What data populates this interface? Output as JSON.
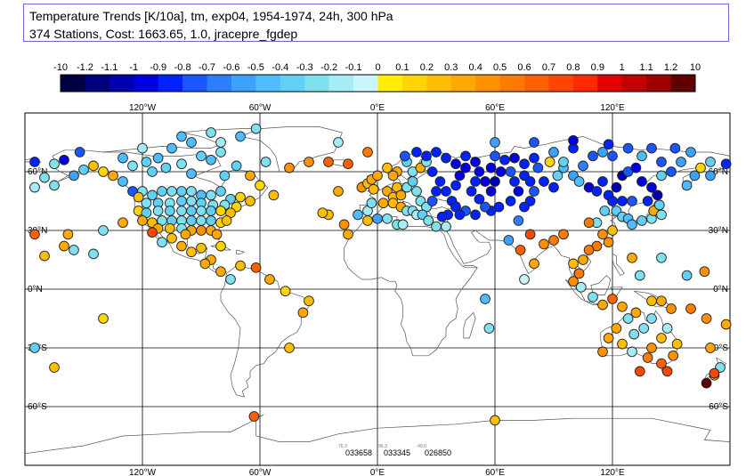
{
  "title": {
    "line1": "Temperature Trends [K/10a], tm, exp04, 1954-1974, 24h, 300 hPa",
    "line2": "374 Stations, Cost: 1663.65, 1.0, jracepre_fgdep"
  },
  "colorbar": {
    "labels": [
      "-10",
      "-1.2",
      "-1.1",
      "-1",
      "-0.9",
      "-0.8",
      "-0.7",
      "-0.6",
      "-0.5",
      "-0.4",
      "-0.3",
      "-0.2",
      "-0.1",
      "0",
      "0.1",
      "0.2",
      "0.3",
      "0.4",
      "0.5",
      "0.6",
      "0.7",
      "0.8",
      "0.9",
      "1",
      "1.1",
      "1.2",
      "10"
    ],
    "colors": [
      "#000040",
      "#00007a",
      "#0000b0",
      "#0000e0",
      "#0022ff",
      "#1a55ff",
      "#2d7dff",
      "#3ca2ff",
      "#4fbcff",
      "#62d0f5",
      "#7fe0f0",
      "#a6ecf5",
      "#caf6fb",
      "#ffee00",
      "#ffd500",
      "#ffbf00",
      "#ffa800",
      "#ff9000",
      "#ff7a00",
      "#ff6000",
      "#ff4500",
      "#ff2a00",
      "#e40000",
      "#c40000",
      "#9e0000",
      "#600000"
    ]
  },
  "map": {
    "lon_labels": [
      "120°W",
      "60°W",
      "0°E",
      "60°E",
      "120°E"
    ],
    "lat_labels": [
      "60°N",
      "30°N",
      "0°N",
      "30°S",
      "60°S"
    ],
    "station_ids": [
      "033658",
      "033345",
      "026850"
    ],
    "station_id_values": [
      "76.3",
      "86.3",
      "49.0"
    ]
  },
  "stations": [
    [
      -175,
      65,
      -0.9
    ],
    [
      -165,
      64,
      -0.3
    ],
    [
      -160,
      66,
      -1.0
    ],
    [
      -155,
      58,
      -0.6
    ],
    [
      -152,
      70,
      -0.8
    ],
    [
      -150,
      61,
      -0.4
    ],
    [
      -145,
      63,
      0.2
    ],
    [
      -140,
      60,
      0.1
    ],
    [
      -135,
      58,
      0.3
    ],
    [
      -130,
      67,
      -0.5
    ],
    [
      -125,
      63,
      -0.3
    ],
    [
      -118,
      65,
      -0.4
    ],
    [
      -115,
      60,
      -0.4
    ],
    [
      -112,
      67,
      -0.5
    ],
    [
      -108,
      62,
      -0.4
    ],
    [
      -100,
      64,
      -0.3
    ],
    [
      -95,
      59,
      -0.5
    ],
    [
      -90,
      68,
      -0.4
    ],
    [
      -85,
      66,
      -0.5
    ],
    [
      -80,
      70,
      -0.3
    ],
    [
      -78,
      58,
      -0.4
    ],
    [
      -72,
      63,
      -0.4
    ],
    [
      -65,
      58,
      0.3
    ],
    [
      -60,
      53,
      0.1
    ],
    [
      -53,
      48,
      0.2
    ],
    [
      -57,
      65,
      -0.3
    ],
    [
      -120,
      72,
      -0.2
    ],
    [
      -105,
      72,
      -0.5
    ],
    [
      -95,
      75,
      -0.5
    ],
    [
      -80,
      75,
      -0.2
    ],
    [
      -70,
      78,
      -0.5
    ],
    [
      -45,
      62,
      0.4
    ],
    [
      -35,
      65,
      0.4
    ],
    [
      -25,
      65,
      0.6
    ],
    [
      -20,
      75,
      -0.2
    ],
    [
      -15,
      64,
      0.6
    ],
    [
      -5,
      70,
      0.5
    ],
    [
      -62,
      82,
      -0.3
    ],
    [
      -85,
      80,
      -0.3
    ],
    [
      -100,
      78,
      -0.5
    ],
    [
      -170,
      57,
      -0.3
    ],
    [
      -165,
      53,
      -0.3
    ],
    [
      -175,
      52,
      -0.2
    ],
    [
      -130,
      55,
      -0.5
    ],
    [
      -125,
      50,
      -0.8
    ],
    [
      -120,
      50,
      -0.3
    ],
    [
      -115,
      48,
      -0.4
    ],
    [
      -110,
      50,
      -0.4
    ],
    [
      -105,
      50,
      -0.3
    ],
    [
      -100,
      50,
      -0.4
    ],
    [
      -95,
      50,
      -0.3
    ],
    [
      -90,
      48,
      -0.5
    ],
    [
      -85,
      48,
      -0.3
    ],
    [
      -80,
      50,
      -0.4
    ],
    [
      -75,
      46,
      -0.4
    ],
    [
      -70,
      47,
      0.1
    ],
    [
      -65,
      45,
      0.2
    ],
    [
      -122,
      47,
      0.2
    ],
    [
      -118,
      44,
      -0.3
    ],
    [
      -112,
      44,
      -0.4
    ],
    [
      -106,
      44,
      -0.3
    ],
    [
      -100,
      45,
      -0.4
    ],
    [
      -95,
      45,
      -0.3
    ],
    [
      -90,
      44,
      -0.4
    ],
    [
      -84,
      43,
      -0.3
    ],
    [
      -78,
      43,
      -0.3
    ],
    [
      -72,
      42,
      0.1
    ],
    [
      -122,
      40,
      0.1
    ],
    [
      -118,
      39,
      -0.4
    ],
    [
      -112,
      40,
      -0.3
    ],
    [
      -106,
      40,
      -0.4
    ],
    [
      -100,
      40,
      -0.3
    ],
    [
      -95,
      40,
      -0.4
    ],
    [
      -90,
      40,
      -0.3
    ],
    [
      -85,
      40,
      -0.4
    ],
    [
      -80,
      40,
      0.1
    ],
    [
      -75,
      39,
      0.2
    ],
    [
      -120,
      35,
      0.3
    ],
    [
      -115,
      34,
      0.2
    ],
    [
      -110,
      35,
      -0.3
    ],
    [
      -105,
      35,
      -0.4
    ],
    [
      -100,
      35,
      -0.3
    ],
    [
      -95,
      35,
      -0.4
    ],
    [
      -90,
      35,
      -0.3
    ],
    [
      -85,
      35,
      -0.4
    ],
    [
      -80,
      34,
      0.1
    ],
    [
      -77,
      35,
      0.2
    ],
    [
      -112,
      31,
      0.3
    ],
    [
      -106,
      31,
      0.2
    ],
    [
      -100,
      31,
      -0.3
    ],
    [
      -95,
      30,
      0.3
    ],
    [
      -90,
      30,
      0.4
    ],
    [
      -85,
      30,
      0.3
    ],
    [
      -82,
      28,
      0.3
    ],
    [
      -98,
      28,
      0.3
    ],
    [
      -105,
      26,
      0.2
    ],
    [
      -110,
      24,
      -0.3
    ],
    [
      -100,
      22,
      0.3
    ],
    [
      -95,
      19,
      0.2
    ],
    [
      -90,
      21,
      0.2
    ],
    [
      -85,
      15,
      0.3
    ],
    [
      -80,
      22,
      0.1
    ],
    [
      -115,
      29,
      0.7
    ],
    [
      -130,
      34,
      0.3
    ],
    [
      -140,
      30,
      -0.3
    ],
    [
      -155,
      20,
      -0.3
    ],
    [
      -160,
      22,
      0.3
    ],
    [
      -175,
      28,
      0.6
    ],
    [
      -170,
      17,
      0.2
    ],
    [
      -158,
      28,
      0.3
    ],
    [
      -145,
      18,
      -0.3
    ],
    [
      -88,
      13,
      0.3
    ],
    [
      -80,
      9,
      0.3
    ],
    [
      -75,
      5,
      -0.3
    ],
    [
      -70,
      12,
      0.2
    ],
    [
      -62,
      11,
      0.6
    ],
    [
      -55,
      5,
      0.3
    ],
    [
      -47,
      -1,
      0.1
    ],
    [
      -35,
      -6,
      0.2
    ],
    [
      -38,
      -12,
      0.3
    ],
    [
      -175,
      -30,
      -0.4
    ],
    [
      -20,
      50,
      0.3
    ],
    [
      -25,
      38,
      0.2
    ],
    [
      -28,
      39,
      0.2
    ],
    [
      -17,
      33,
      0.4
    ],
    [
      -15,
      28,
      0.3
    ],
    [
      -10,
      38,
      -0.5
    ],
    [
      -5,
      40,
      -0.2
    ],
    [
      -3,
      44,
      -0.3
    ],
    [
      -8,
      52,
      0.4
    ],
    [
      -5,
      54,
      0.2
    ],
    [
      -3,
      56,
      0.3
    ],
    [
      -2,
      51,
      0.2
    ],
    [
      0,
      58,
      0.3
    ],
    [
      5,
      50,
      0.3
    ],
    [
      8,
      47,
      0.2
    ],
    [
      10,
      52,
      0.2
    ],
    [
      12,
      48,
      0.3
    ],
    [
      15,
      52,
      -0.3
    ],
    [
      18,
      55,
      -0.4
    ],
    [
      20,
      50,
      -0.3
    ],
    [
      22,
      45,
      -0.3
    ],
    [
      25,
      42,
      -0.3
    ],
    [
      28,
      45,
      -0.8
    ],
    [
      30,
      50,
      -0.9
    ],
    [
      3,
      44,
      0.3
    ],
    [
      8,
      44,
      0.2
    ],
    [
      12,
      42,
      0.3
    ],
    [
      15,
      40,
      -0.3
    ],
    [
      18,
      40,
      -0.3
    ],
    [
      20,
      38,
      -0.2
    ],
    [
      23,
      38,
      -0.4
    ],
    [
      26,
      35,
      -0.3
    ],
    [
      30,
      32,
      -0.3
    ],
    [
      35,
      32,
      -0.2
    ],
    [
      0,
      36,
      -0.6
    ],
    [
      5,
      36,
      -0.3
    ],
    [
      10,
      33,
      -0.3
    ],
    [
      13,
      33,
      -0.2
    ],
    [
      -5,
      35,
      0.2
    ],
    [
      18,
      60,
      -0.3
    ],
    [
      22,
      62,
      0.3
    ],
    [
      25,
      65,
      -0.3
    ],
    [
      15,
      65,
      -0.4
    ],
    [
      10,
      60,
      0.3
    ],
    [
      5,
      62,
      0.2
    ],
    [
      8,
      58,
      0.3
    ],
    [
      14,
      68,
      -0.8
    ],
    [
      20,
      70,
      -0.9
    ],
    [
      25,
      68,
      -0.9
    ],
    [
      30,
      70,
      -0.9
    ],
    [
      35,
      67,
      -0.9
    ],
    [
      28,
      60,
      -0.9
    ],
    [
      32,
      55,
      -0.9
    ],
    [
      35,
      50,
      -0.9
    ],
    [
      38,
      45,
      -0.9
    ],
    [
      40,
      42,
      -0.9
    ],
    [
      45,
      40,
      -0.8
    ],
    [
      42,
      38,
      -0.9
    ],
    [
      36,
      38,
      -0.9
    ],
    [
      33,
      37,
      -0.9
    ],
    [
      40,
      53,
      -0.9
    ],
    [
      42,
      58,
      -1.0
    ],
    [
      45,
      62,
      -1.0
    ],
    [
      45,
      68,
      -0.9
    ],
    [
      40,
      64,
      -1.0
    ],
    [
      50,
      65,
      -1.0
    ],
    [
      52,
      60,
      -1.0
    ],
    [
      50,
      55,
      -0.9
    ],
    [
      55,
      55,
      -1.0
    ],
    [
      48,
      50,
      -0.9
    ],
    [
      52,
      46,
      -0.9
    ],
    [
      58,
      50,
      -1.0
    ],
    [
      60,
      55,
      -1.1
    ],
    [
      63,
      60,
      -1.0
    ],
    [
      65,
      66,
      -0.9
    ],
    [
      58,
      62,
      -1.0
    ],
    [
      68,
      60,
      -0.8
    ],
    [
      70,
      55,
      -0.9
    ],
    [
      72,
      50,
      -1.0
    ],
    [
      68,
      45,
      -0.9
    ],
    [
      62,
      42,
      -0.9
    ],
    [
      58,
      40,
      -0.9
    ],
    [
      55,
      42,
      -0.8
    ],
    [
      50,
      38,
      -0.9
    ],
    [
      75,
      42,
      -0.9
    ],
    [
      78,
      45,
      -0.9
    ],
    [
      80,
      50,
      -0.8
    ],
    [
      85,
      55,
      -0.9
    ],
    [
      90,
      52,
      -0.9
    ],
    [
      75,
      58,
      -0.9
    ],
    [
      82,
      62,
      -0.8
    ],
    [
      88,
      65,
      0.1
    ],
    [
      95,
      62,
      -0.5
    ],
    [
      100,
      58,
      -0.6
    ],
    [
      103,
      55,
      -0.5
    ],
    [
      108,
      52,
      -1.0
    ],
    [
      112,
      50,
      -0.9
    ],
    [
      115,
      55,
      -0.9
    ],
    [
      118,
      48,
      -0.9
    ],
    [
      122,
      52,
      -1.1
    ],
    [
      125,
      58,
      -1.1
    ],
    [
      128,
      60,
      -0.8
    ],
    [
      132,
      62,
      -1.0
    ],
    [
      135,
      55,
      -1.0
    ],
    [
      140,
      52,
      -1.0
    ],
    [
      143,
      48,
      -1.1
    ],
    [
      138,
      45,
      -0.9
    ],
    [
      130,
      45,
      -0.8
    ],
    [
      125,
      45,
      -0.9
    ],
    [
      120,
      45,
      -0.9
    ],
    [
      60,
      68,
      -0.8
    ],
    [
      70,
      67,
      -1.0
    ],
    [
      75,
      64,
      -0.9
    ],
    [
      80,
      67,
      -0.9
    ],
    [
      90,
      70,
      -0.6
    ],
    [
      100,
      72,
      -0.9
    ],
    [
      110,
      68,
      -0.8
    ],
    [
      115,
      70,
      -0.6
    ],
    [
      120,
      68,
      -0.8
    ],
    [
      128,
      72,
      -0.8
    ],
    [
      135,
      68,
      -0.5
    ],
    [
      145,
      65,
      -0.8
    ],
    [
      150,
      60,
      -0.8
    ],
    [
      155,
      65,
      -0.6
    ],
    [
      160,
      70,
      -0.6
    ],
    [
      165,
      62,
      0.1
    ],
    [
      170,
      65,
      -0.4
    ],
    [
      178,
      64,
      -0.9
    ],
    [
      170,
      58,
      -0.6
    ],
    [
      158,
      53,
      -0.5
    ],
    [
      162,
      58,
      -0.6
    ],
    [
      145,
      58,
      -0.4
    ],
    [
      105,
      63,
      -0.7
    ],
    [
      60,
      75,
      -0.6
    ],
    [
      80,
      75,
      -0.8
    ],
    [
      100,
      76,
      -1.0
    ],
    [
      118,
      74,
      -0.9
    ],
    [
      140,
      72,
      -0.8
    ],
    [
      152,
      72,
      -0.8
    ],
    [
      95,
      65,
      -0.4
    ],
    [
      78,
      55,
      -0.9
    ],
    [
      92,
      58,
      -0.4
    ],
    [
      122,
      40,
      -0.4
    ],
    [
      125,
      37,
      -0.4
    ],
    [
      128,
      36,
      -0.5
    ],
    [
      130,
      33,
      -0.5
    ],
    [
      135,
      35,
      -0.4
    ],
    [
      140,
      36,
      -0.3
    ],
    [
      141,
      40,
      0.3
    ],
    [
      144,
      43,
      -0.4
    ],
    [
      145,
      38,
      -0.3
    ],
    [
      120,
      30,
      0.2
    ],
    [
      115,
      28,
      0.4
    ],
    [
      118,
      24,
      0.4
    ],
    [
      112,
      22,
      0.5
    ],
    [
      108,
      20,
      0.5
    ],
    [
      105,
      15,
      0.3
    ],
    [
      100,
      13,
      0.2
    ],
    [
      103,
      8,
      0.5
    ],
    [
      100,
      4,
      0.4
    ],
    [
      104,
      1,
      -0.2
    ],
    [
      110,
      -4,
      -0.3
    ],
    [
      115,
      -8,
      0.3
    ],
    [
      120,
      -5,
      0.6
    ],
    [
      125,
      -9,
      0.3
    ],
    [
      140,
      -6,
      0.2
    ],
    [
      145,
      -6,
      0.3
    ],
    [
      150,
      -10,
      0.4
    ],
    [
      160,
      -10,
      0.5
    ],
    [
      168,
      -15,
      0.4
    ],
    [
      178,
      -18,
      0.3
    ],
    [
      170,
      -30,
      0.3
    ],
    [
      175,
      -40,
      -0.3
    ],
    [
      172,
      -44,
      0.3
    ],
    [
      148,
      -42,
      0.7
    ],
    [
      145,
      -38,
      0.6
    ],
    [
      151,
      -34,
      0.4
    ],
    [
      153,
      -28,
      0.2
    ],
    [
      148,
      -20,
      -0.2
    ],
    [
      145,
      -25,
      0.2
    ],
    [
      140,
      -30,
      0.4
    ],
    [
      138,
      -35,
      0.5
    ],
    [
      130,
      -32,
      -0.2
    ],
    [
      125,
      -28,
      0.2
    ],
    [
      122,
      -20,
      0.3
    ],
    [
      118,
      -25,
      0.3
    ],
    [
      115,
      -32,
      0.4
    ],
    [
      128,
      -15,
      -0.3
    ],
    [
      132,
      -12,
      0.3
    ],
    [
      136,
      -20,
      -0.3
    ],
    [
      131,
      -23,
      -0.3
    ],
    [
      140,
      -15,
      -0.3
    ],
    [
      145,
      16,
      -0.3
    ],
    [
      167,
      9,
      0.4
    ],
    [
      158,
      7,
      -0.4
    ],
    [
      134,
      7,
      -0.3
    ],
    [
      130,
      16,
      0.3
    ],
    [
      112,
      34,
      -0.3
    ],
    [
      116,
      40,
      -0.4
    ],
    [
      108,
      34,
      0.5
    ],
    [
      90,
      25,
      0.5
    ],
    [
      95,
      28,
      0.5
    ],
    [
      85,
      23,
      0.4
    ],
    [
      78,
      28,
      0.7
    ],
    [
      73,
      20,
      0.6
    ],
    [
      80,
      13,
      0.3
    ],
    [
      72,
      35,
      -0.7
    ],
    [
      67,
      25,
      -0.6
    ],
    [
      57,
      -20,
      -0.3
    ],
    [
      75,
      5,
      -0.1
    ],
    [
      55,
      -5,
      -0.5
    ],
    [
      172,
      -43,
      0.7
    ],
    [
      134,
      -42,
      0.7
    ],
    [
      168,
      -48,
      1.2
    ],
    [
      -63,
      -65,
      0.6
    ],
    [
      60,
      -67,
      0.2
    ],
    [
      -45,
      -30,
      0.2
    ],
    [
      -165,
      -40,
      0.2
    ],
    [
      -140,
      -15,
      0.1
    ]
  ]
}
